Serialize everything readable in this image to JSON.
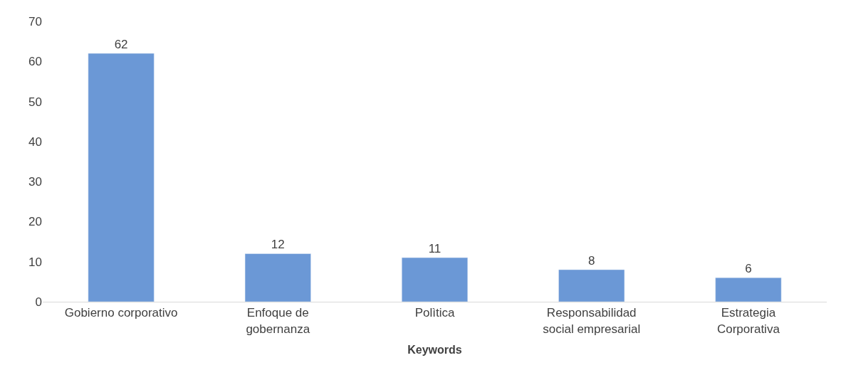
{
  "chart_data": {
    "type": "bar",
    "xlabel": "Keywords",
    "categories": [
      "Gobierno corporativo",
      "Enfoque de gobernanza",
      "Polìtica",
      "Responsabilidad social empresarial",
      "Estrategia Corporativa"
    ],
    "values": [
      62,
      12,
      11,
      8,
      6
    ],
    "color": "#6b98d6",
    "ylim": [
      0,
      70
    ],
    "yticks": [
      0,
      10,
      20,
      30,
      40,
      50,
      60,
      70
    ],
    "data_labels": true
  }
}
